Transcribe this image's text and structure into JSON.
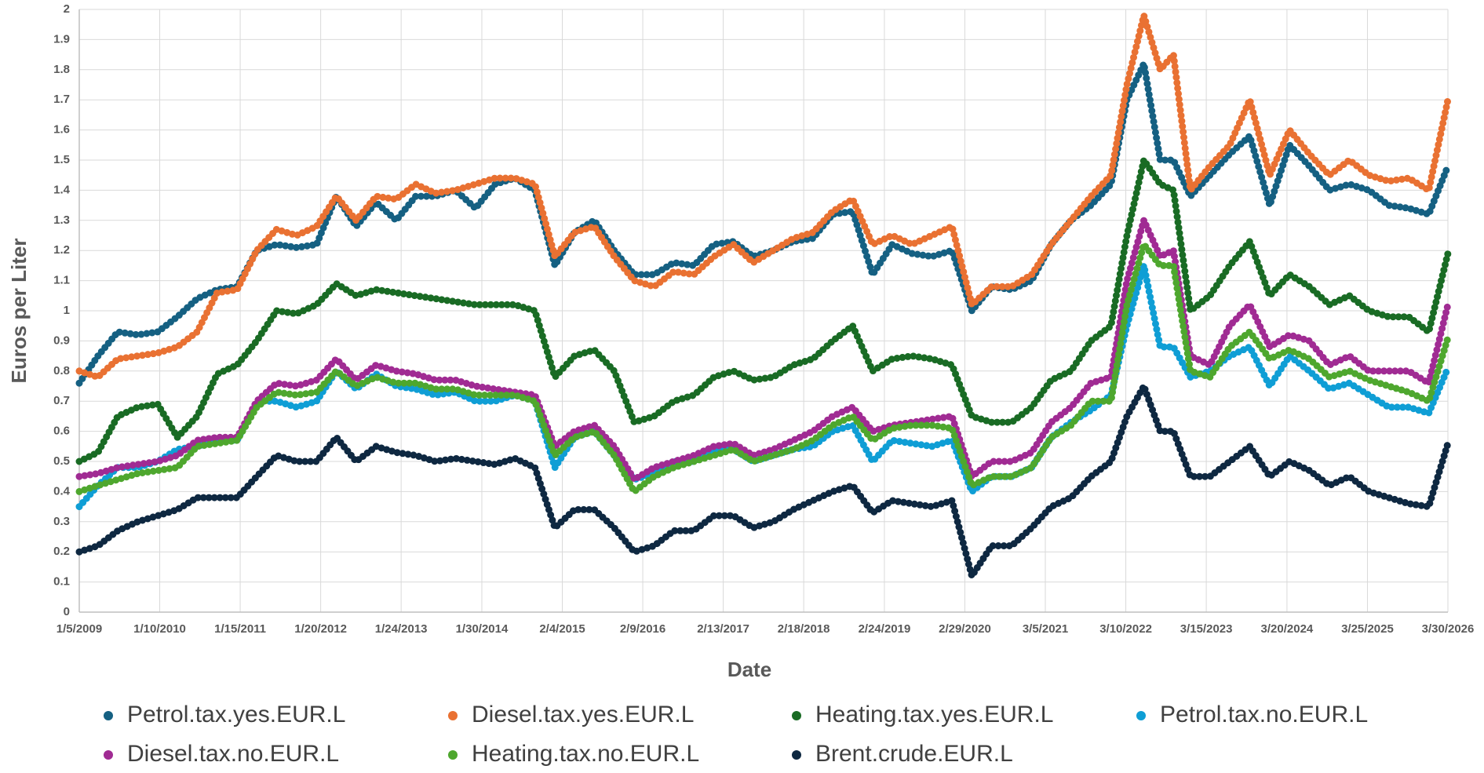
{
  "chart_data": {
    "type": "scatter",
    "x_label": "Date",
    "y_label": "Euros per Liter",
    "xlim": [
      "1/5/2009",
      "3/30/2026"
    ],
    "xticks": [
      "1/5/2009",
      "1/10/2010",
      "1/15/2011",
      "1/20/2012",
      "1/24/2013",
      "1/30/2014",
      "2/4/2015",
      "2/9/2016",
      "2/13/2017",
      "2/18/2018",
      "2/24/2019",
      "2/29/2020",
      "3/5/2021",
      "3/10/2022",
      "3/15/2023",
      "3/20/2024",
      "3/25/2025",
      "3/30/2026"
    ],
    "ylim": [
      0,
      2
    ],
    "yticks": [
      0,
      0.1,
      0.2,
      0.3,
      0.4,
      0.5,
      0.6,
      0.7,
      0.8,
      0.9,
      1,
      1.1,
      1.2,
      1.3,
      1.4,
      1.5,
      1.6,
      1.7,
      1.8,
      1.9,
      2
    ],
    "grid": true,
    "legend": "bottom",
    "x": [
      "1/5/2009",
      "4/1/2009",
      "7/1/2009",
      "10/1/2009",
      "1/1/2010",
      "4/1/2010",
      "7/1/2010",
      "10/1/2010",
      "1/1/2011",
      "4/1/2011",
      "7/1/2011",
      "10/1/2011",
      "1/1/2012",
      "4/1/2012",
      "7/1/2012",
      "10/1/2012",
      "1/1/2013",
      "4/1/2013",
      "7/1/2013",
      "10/1/2013",
      "1/1/2014",
      "4/1/2014",
      "7/1/2014",
      "10/1/2014",
      "1/1/2015",
      "4/1/2015",
      "7/1/2015",
      "10/1/2015",
      "1/1/2016",
      "4/1/2016",
      "7/1/2016",
      "10/1/2016",
      "1/1/2017",
      "4/1/2017",
      "7/1/2017",
      "10/1/2017",
      "1/1/2018",
      "4/1/2018",
      "7/1/2018",
      "10/1/2018",
      "1/1/2019",
      "4/1/2019",
      "7/1/2019",
      "10/1/2019",
      "1/1/2020",
      "4/1/2020",
      "7/1/2020",
      "10/1/2020",
      "1/1/2021",
      "4/1/2021",
      "7/1/2021",
      "10/1/2021",
      "1/1/2022",
      "3/15/2022",
      "6/1/2022",
      "8/15/2022",
      "10/15/2022",
      "1/1/2023",
      "4/1/2023",
      "7/1/2023",
      "10/1/2023",
      "1/1/2024",
      "4/1/2024",
      "7/1/2024",
      "10/1/2024",
      "1/1/2025",
      "4/1/2025",
      "7/1/2025",
      "10/1/2025",
      "1/1/2026",
      "3/30/2026"
    ],
    "series": [
      {
        "name": "Petrol.tax.yes.EUR.L",
        "color": "#156082",
        "values": [
          0.76,
          0.85,
          0.93,
          0.92,
          0.93,
          0.98,
          1.04,
          1.07,
          1.08,
          1.2,
          1.22,
          1.21,
          1.22,
          1.38,
          1.28,
          1.36,
          1.3,
          1.38,
          1.38,
          1.4,
          1.34,
          1.42,
          1.44,
          1.4,
          1.15,
          1.26,
          1.3,
          1.2,
          1.12,
          1.12,
          1.16,
          1.15,
          1.22,
          1.23,
          1.18,
          1.2,
          1.23,
          1.24,
          1.32,
          1.33,
          1.12,
          1.22,
          1.19,
          1.18,
          1.2,
          1.0,
          1.08,
          1.07,
          1.1,
          1.22,
          1.3,
          1.35,
          1.42,
          1.7,
          1.82,
          1.5,
          1.5,
          1.38,
          1.45,
          1.52,
          1.58,
          1.35,
          1.55,
          1.48,
          1.4,
          1.42,
          1.4,
          1.35,
          1.34,
          1.32,
          1.48
        ]
      },
      {
        "name": "Diesel.tax.yes.EUR.L",
        "color": "#e97132",
        "values": [
          0.8,
          0.78,
          0.84,
          0.85,
          0.86,
          0.88,
          0.93,
          1.06,
          1.07,
          1.2,
          1.27,
          1.25,
          1.28,
          1.38,
          1.3,
          1.38,
          1.37,
          1.42,
          1.39,
          1.4,
          1.42,
          1.44,
          1.44,
          1.42,
          1.18,
          1.26,
          1.28,
          1.18,
          1.1,
          1.08,
          1.13,
          1.12,
          1.18,
          1.22,
          1.16,
          1.2,
          1.24,
          1.26,
          1.33,
          1.37,
          1.22,
          1.25,
          1.22,
          1.25,
          1.28,
          1.02,
          1.08,
          1.08,
          1.12,
          1.22,
          1.3,
          1.38,
          1.45,
          1.75,
          1.98,
          1.8,
          1.85,
          1.4,
          1.48,
          1.55,
          1.7,
          1.45,
          1.6,
          1.52,
          1.45,
          1.5,
          1.45,
          1.43,
          1.44,
          1.4,
          1.7
        ]
      },
      {
        "name": "Heating.tax.yes.EUR.L",
        "color": "#196b24",
        "values": [
          0.5,
          0.53,
          0.65,
          0.68,
          0.69,
          0.58,
          0.65,
          0.79,
          0.82,
          0.9,
          1.0,
          0.99,
          1.02,
          1.09,
          1.05,
          1.07,
          1.06,
          1.05,
          1.04,
          1.03,
          1.02,
          1.02,
          1.02,
          1.0,
          0.78,
          0.85,
          0.87,
          0.8,
          0.63,
          0.65,
          0.7,
          0.72,
          0.78,
          0.8,
          0.77,
          0.78,
          0.82,
          0.84,
          0.9,
          0.95,
          0.8,
          0.84,
          0.85,
          0.84,
          0.82,
          0.65,
          0.63,
          0.63,
          0.68,
          0.77,
          0.8,
          0.9,
          0.95,
          1.25,
          1.5,
          1.42,
          1.4,
          1.0,
          1.05,
          1.15,
          1.23,
          1.05,
          1.12,
          1.08,
          1.02,
          1.05,
          1.0,
          0.98,
          0.98,
          0.93,
          1.19
        ]
      },
      {
        "name": "Petrol.tax.no.EUR.L",
        "color": "#0f9ed5",
        "values": [
          0.35,
          0.42,
          0.48,
          0.48,
          0.5,
          0.54,
          0.55,
          0.57,
          0.57,
          0.7,
          0.7,
          0.68,
          0.7,
          0.8,
          0.74,
          0.79,
          0.75,
          0.74,
          0.72,
          0.73,
          0.7,
          0.7,
          0.72,
          0.7,
          0.48,
          0.58,
          0.6,
          0.52,
          0.44,
          0.46,
          0.5,
          0.5,
          0.54,
          0.54,
          0.5,
          0.52,
          0.54,
          0.55,
          0.6,
          0.62,
          0.5,
          0.57,
          0.56,
          0.55,
          0.57,
          0.4,
          0.45,
          0.45,
          0.48,
          0.58,
          0.63,
          0.67,
          0.72,
          0.95,
          1.15,
          0.88,
          0.88,
          0.78,
          0.8,
          0.85,
          0.88,
          0.75,
          0.85,
          0.8,
          0.74,
          0.76,
          0.72,
          0.68,
          0.68,
          0.66,
          0.81
        ]
      },
      {
        "name": "Diesel.tax.no.EUR.L",
        "color": "#a02b93",
        "values": [
          0.45,
          0.46,
          0.48,
          0.49,
          0.5,
          0.52,
          0.57,
          0.58,
          0.58,
          0.7,
          0.76,
          0.75,
          0.77,
          0.84,
          0.77,
          0.82,
          0.8,
          0.79,
          0.77,
          0.77,
          0.75,
          0.74,
          0.73,
          0.72,
          0.55,
          0.6,
          0.62,
          0.55,
          0.44,
          0.48,
          0.5,
          0.52,
          0.55,
          0.56,
          0.52,
          0.54,
          0.57,
          0.6,
          0.65,
          0.68,
          0.6,
          0.62,
          0.63,
          0.64,
          0.65,
          0.45,
          0.5,
          0.5,
          0.53,
          0.63,
          0.68,
          0.76,
          0.78,
          1.1,
          1.3,
          1.18,
          1.2,
          0.85,
          0.82,
          0.95,
          1.02,
          0.88,
          0.92,
          0.9,
          0.82,
          0.85,
          0.8,
          0.8,
          0.8,
          0.76,
          1.02
        ]
      },
      {
        "name": "Heating.tax.no.EUR.L",
        "color": "#4ea72e",
        "values": [
          0.4,
          0.42,
          0.44,
          0.46,
          0.47,
          0.48,
          0.55,
          0.56,
          0.57,
          0.68,
          0.73,
          0.72,
          0.73,
          0.8,
          0.75,
          0.78,
          0.76,
          0.76,
          0.74,
          0.74,
          0.72,
          0.72,
          0.72,
          0.7,
          0.52,
          0.58,
          0.6,
          0.52,
          0.4,
          0.45,
          0.48,
          0.5,
          0.52,
          0.54,
          0.5,
          0.52,
          0.54,
          0.57,
          0.62,
          0.65,
          0.57,
          0.61,
          0.62,
          0.62,
          0.61,
          0.42,
          0.45,
          0.45,
          0.48,
          0.58,
          0.62,
          0.7,
          0.7,
          1.02,
          1.22,
          1.15,
          1.15,
          0.8,
          0.78,
          0.88,
          0.93,
          0.84,
          0.87,
          0.84,
          0.78,
          0.8,
          0.77,
          0.75,
          0.73,
          0.7,
          0.91
        ]
      },
      {
        "name": "Brent.crude.EUR.L",
        "color": "#0e2841",
        "values": [
          0.2,
          0.22,
          0.27,
          0.3,
          0.32,
          0.34,
          0.38,
          0.38,
          0.38,
          0.45,
          0.52,
          0.5,
          0.5,
          0.58,
          0.5,
          0.55,
          0.53,
          0.52,
          0.5,
          0.51,
          0.5,
          0.49,
          0.51,
          0.48,
          0.28,
          0.34,
          0.34,
          0.28,
          0.2,
          0.22,
          0.27,
          0.27,
          0.32,
          0.32,
          0.28,
          0.3,
          0.34,
          0.37,
          0.4,
          0.42,
          0.33,
          0.37,
          0.36,
          0.35,
          0.37,
          0.12,
          0.22,
          0.22,
          0.28,
          0.35,
          0.38,
          0.45,
          0.5,
          0.65,
          0.75,
          0.6,
          0.6,
          0.45,
          0.45,
          0.5,
          0.55,
          0.45,
          0.5,
          0.47,
          0.42,
          0.45,
          0.4,
          0.38,
          0.36,
          0.35,
          0.56
        ]
      }
    ]
  }
}
